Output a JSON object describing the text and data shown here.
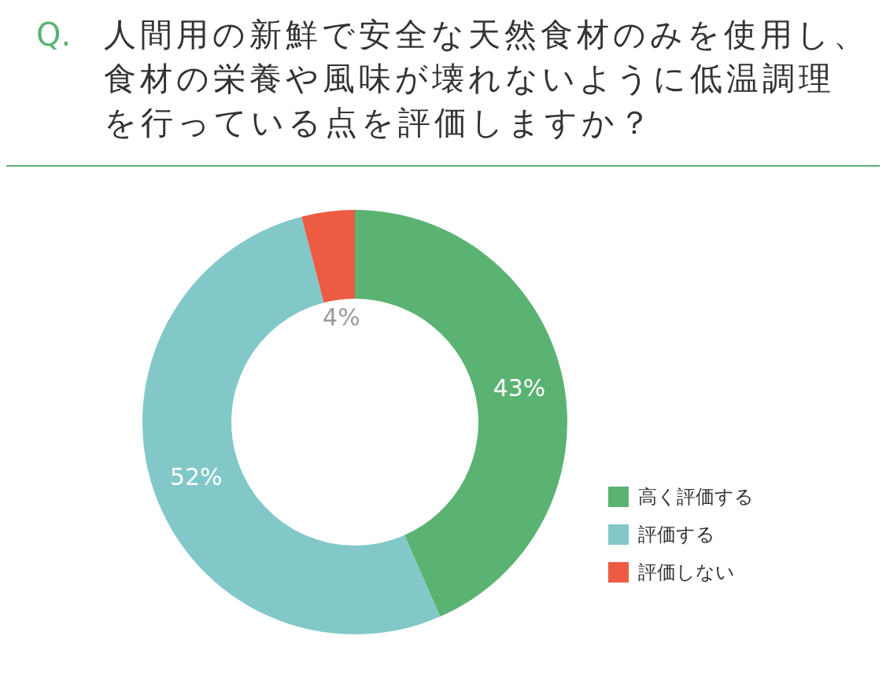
{
  "chart_data": {
    "type": "donut",
    "title": "Q. 人間用の新鮮で安全な天然食材のみを使用し、食材の栄養や風味が壊れないように低温調理を行っている点を評価しますか？",
    "categories": [
      "高く評価する",
      "評価する",
      "評価しない"
    ],
    "values": [
      43,
      52,
      4
    ],
    "colors": [
      "#5bb373",
      "#82c8c9",
      "#ec5b42"
    ],
    "value_labels": [
      "43%",
      "52%",
      "4%"
    ],
    "legend": "bottom right"
  }
}
